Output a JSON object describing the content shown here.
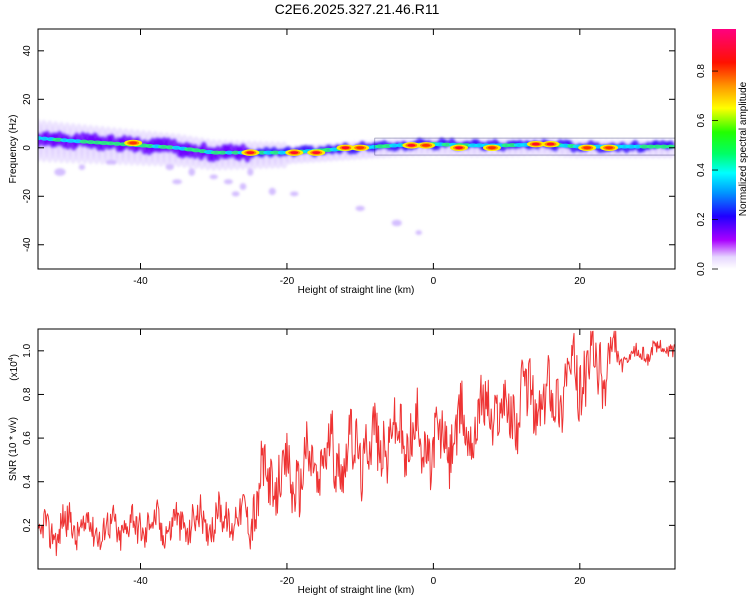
{
  "title": "C2E6.2025.327.21.46.R11",
  "colors": {
    "snr_line": "#ee3333",
    "axis": "#000000",
    "background": "#ffffff"
  },
  "chart_data": [
    {
      "type": "heatmap",
      "name": "spectrogram",
      "xlabel": "Height of straight line (km)",
      "ylabel": "Frequency (Hz)",
      "xlim": [
        -54,
        33
      ],
      "ylim": [
        -50,
        49
      ],
      "xticks": [
        -40,
        -20,
        0,
        20
      ],
      "xtick_labels": [
        "-40",
        "-20",
        "0",
        "20"
      ],
      "yticks": [
        -40,
        -20,
        0,
        20,
        40
      ],
      "ytick_labels": [
        "-40",
        "-20",
        "0",
        "20",
        "40"
      ],
      "ridge": [
        {
          "x": -54,
          "y": 4
        },
        {
          "x": -50,
          "y": 3
        },
        {
          "x": -45,
          "y": 2
        },
        {
          "x": -40,
          "y": 1
        },
        {
          "x": -35,
          "y": 0
        },
        {
          "x": -30,
          "y": -2
        },
        {
          "x": -25,
          "y": -2
        },
        {
          "x": -20,
          "y": -2
        },
        {
          "x": -15,
          "y": -1
        },
        {
          "x": -10,
          "y": 0
        },
        {
          "x": -5,
          "y": 1
        },
        {
          "x": 0,
          "y": 1.5
        },
        {
          "x": 5,
          "y": 1
        },
        {
          "x": 10,
          "y": 1
        },
        {
          "x": 15,
          "y": 1.5
        },
        {
          "x": 20,
          "y": 0.5
        },
        {
          "x": 25,
          "y": 0.5
        },
        {
          "x": 33,
          "y": 0.5
        }
      ],
      "hotspots": [
        {
          "x": -41,
          "y": 2,
          "amp": 0.85
        },
        {
          "x": -25,
          "y": -2,
          "amp": 0.9
        },
        {
          "x": -19,
          "y": -2,
          "amp": 0.9
        },
        {
          "x": -16,
          "y": -2,
          "amp": 0.9
        },
        {
          "x": -12,
          "y": 0,
          "amp": 0.9
        },
        {
          "x": -10,
          "y": 0,
          "amp": 0.85
        },
        {
          "x": -3,
          "y": 1,
          "amp": 0.95
        },
        {
          "x": -1,
          "y": 1,
          "amp": 0.85
        },
        {
          "x": 3.5,
          "y": 0,
          "amp": 0.95
        },
        {
          "x": 8,
          "y": 0,
          "amp": 0.85
        },
        {
          "x": 14,
          "y": 1.5,
          "amp": 0.95
        },
        {
          "x": 16,
          "y": 1.5,
          "amp": 0.95
        },
        {
          "x": 21,
          "y": 0,
          "amp": 0.7
        },
        {
          "x": 24,
          "y": 0,
          "amp": 0.7
        }
      ],
      "scatter": [
        {
          "x": -51,
          "y": -10
        },
        {
          "x": -48,
          "y": -8
        },
        {
          "x": -44,
          "y": -6
        },
        {
          "x": -36,
          "y": -8
        },
        {
          "x": -35,
          "y": -14
        },
        {
          "x": -33,
          "y": -10
        },
        {
          "x": -30,
          "y": -12
        },
        {
          "x": -28,
          "y": -14
        },
        {
          "x": -26,
          "y": -16
        },
        {
          "x": -27,
          "y": -19
        },
        {
          "x": -25,
          "y": -10
        },
        {
          "x": -22,
          "y": -18
        },
        {
          "x": -19,
          "y": -19
        },
        {
          "x": -10,
          "y": -25
        },
        {
          "x": -5,
          "y": -31
        },
        {
          "x": -2,
          "y": -35
        }
      ],
      "colorbar": {
        "label": "Normalized spectral amplitude",
        "range": [
          0.0,
          0.97
        ],
        "ticks": [
          0.0,
          0.2,
          0.4,
          0.6,
          0.8
        ],
        "tick_labels": [
          "0.0",
          "0.2",
          "0.4",
          "0.6",
          "0.8"
        ]
      }
    },
    {
      "type": "line",
      "name": "snr",
      "xlabel": "Height of straight line (km)",
      "ylabel": "SNR (10 * v/v)",
      "scale_label": "(x10",
      "scale_exponent": "4",
      "xlim": [
        -54,
        33
      ],
      "ylim": [
        0.0,
        1.1
      ],
      "xticks": [
        -40,
        -20,
        0,
        20
      ],
      "xtick_labels": [
        "-40",
        "-20",
        "0",
        "20"
      ],
      "yticks": [
        0.2,
        0.4,
        0.6,
        0.8,
        1.0
      ],
      "ytick_labels": [
        "0.2",
        "0.4",
        "0.6",
        "0.8",
        "1.0"
      ],
      "series": [
        {
          "name": "SNR",
          "x": [
            -54,
            -50,
            -45,
            -40,
            -35,
            -30,
            -25,
            -23,
            -20,
            -15,
            -10,
            -5,
            -3,
            0,
            5,
            8,
            10,
            13,
            15,
            18,
            20,
            25,
            30,
            33
          ],
          "y": [
            0.15,
            0.2,
            0.18,
            0.2,
            0.2,
            0.22,
            0.25,
            0.4,
            0.4,
            0.5,
            0.55,
            0.6,
            0.6,
            0.55,
            0.65,
            0.75,
            0.7,
            0.8,
            0.75,
            0.85,
            0.9,
            0.95,
            1.0,
            1.02
          ]
        }
      ]
    }
  ]
}
